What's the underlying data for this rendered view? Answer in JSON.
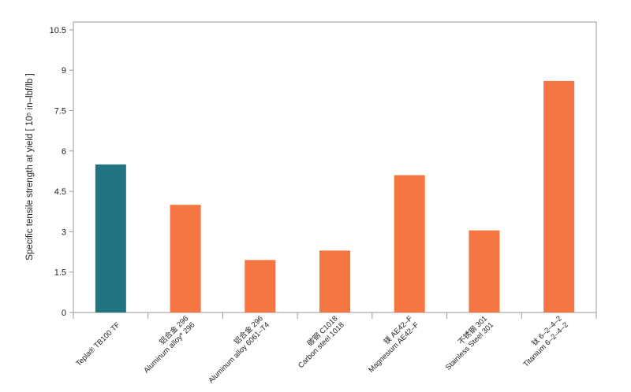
{
  "chart_data": {
    "type": "bar",
    "ylabel": "Specific tensile strength at yield [ 10⁵ in–lbf/lb ]",
    "ylim": [
      0,
      11
    ],
    "yticks": [
      0,
      1.5,
      3,
      4.5,
      6,
      7.5,
      9,
      10.5
    ],
    "ytick_labels": [
      "0",
      "1.5",
      "3",
      "4.5",
      "6",
      "7.5",
      "9",
      "10.5"
    ],
    "grid": false,
    "categories": [
      {
        "lines": [
          "Tepla® TB100 TF"
        ]
      },
      {
        "lines": [
          "铝合金 296",
          "Aluminum alloy* 296"
        ]
      },
      {
        "lines": [
          "铝合金 296",
          "Aluminum alloy 6061–T4"
        ]
      },
      {
        "lines": [
          "碳钢 C1018",
          "Carbon steel 1018"
        ]
      },
      {
        "lines": [
          "镁 AE42–F",
          "Magnesium AE42–F"
        ]
      },
      {
        "lines": [
          "不锈钢 301",
          "Stainless Steel 301"
        ]
      },
      {
        "lines": [
          "钛 6–2–4–2",
          "Titanium 6–2–4–2"
        ]
      }
    ],
    "values": [
      5.5,
      4.0,
      1.95,
      2.3,
      5.1,
      3.05,
      8.6
    ],
    "colors": [
      "#217582",
      "#f47642",
      "#f47642",
      "#f47642",
      "#f47642",
      "#f47642",
      "#f47642"
    ]
  }
}
